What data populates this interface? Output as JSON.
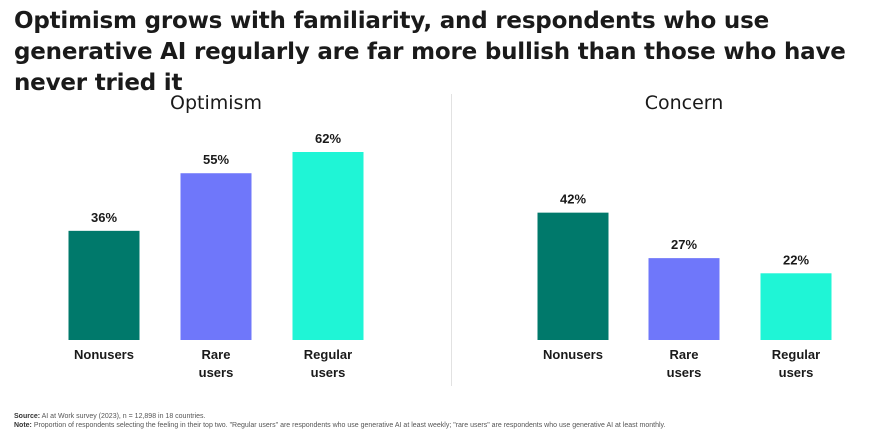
{
  "title": "Optimism grows with familiarity, and respondents who use generative AI regularly are far more bullish than those who have never tried it",
  "footer": {
    "source_label": "Source:",
    "source_text": "AI at Work survey (2023), n = 12,898 in 18 countries.",
    "note_label": "Note:",
    "note_text": "Proportion of respondents selecting the feeling in their top two. \"Regular users\" are respondents who use generative AI at least weekly; \"rare users\" are respondents who use generative AI at least monthly."
  },
  "colors": {
    "nonusers": "#00796b",
    "rare_users": "#6f77fa",
    "regular_users": "#1ff5d6"
  },
  "chart_data": [
    {
      "type": "bar",
      "title": "Optimism",
      "categories": [
        [
          "Nonusers"
        ],
        [
          "Rare",
          "users"
        ],
        [
          "Regular",
          "users"
        ]
      ],
      "values": [
        36,
        55,
        62
      ],
      "value_labels": [
        "36%",
        "55%",
        "62%"
      ],
      "ylim": [
        0,
        62
      ],
      "grid": false
    },
    {
      "type": "bar",
      "title": "Concern",
      "categories": [
        [
          "Nonusers"
        ],
        [
          "Rare",
          "users"
        ],
        [
          "Regular",
          "users"
        ]
      ],
      "values": [
        42,
        27,
        22
      ],
      "value_labels": [
        "42%",
        "27%",
        "22%"
      ],
      "ylim": [
        0,
        62
      ],
      "grid": false
    }
  ]
}
